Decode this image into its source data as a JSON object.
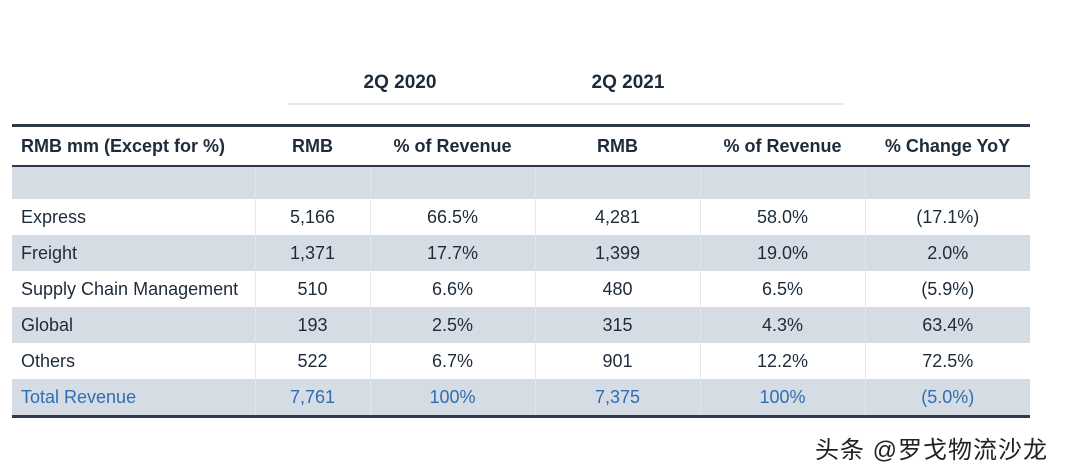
{
  "periods": [
    "2Q 2020",
    "2Q 2021"
  ],
  "headers": [
    "RMB mm (Except for %)",
    "RMB",
    "% of Revenue",
    "RMB",
    "% of Revenue",
    "% Change YoY"
  ],
  "rows": [
    [
      "Express",
      "5,166",
      "66.5%",
      "4,281",
      "58.0%",
      "(17.1%)"
    ],
    [
      "Freight",
      "1,371",
      "17.7%",
      "1,399",
      "19.0%",
      "2.0%"
    ],
    [
      "Supply Chain Management",
      "510",
      "6.6%",
      "480",
      "6.5%",
      "(5.9%)"
    ],
    [
      "Global",
      "193",
      "2.5%",
      "315",
      "4.3%",
      "63.4%"
    ],
    [
      "Others",
      "522",
      "6.7%",
      "901",
      "12.2%",
      "72.5%"
    ]
  ],
  "total": [
    "Total Revenue",
    "7,761",
    "100%",
    "7,375",
    "100%",
    "(5.0%)"
  ],
  "watermark": "头条 @罗戈物流沙龙",
  "colors": {
    "text": "#1e2b3a",
    "total": "#2f6db5",
    "band": "#d6dce4"
  }
}
